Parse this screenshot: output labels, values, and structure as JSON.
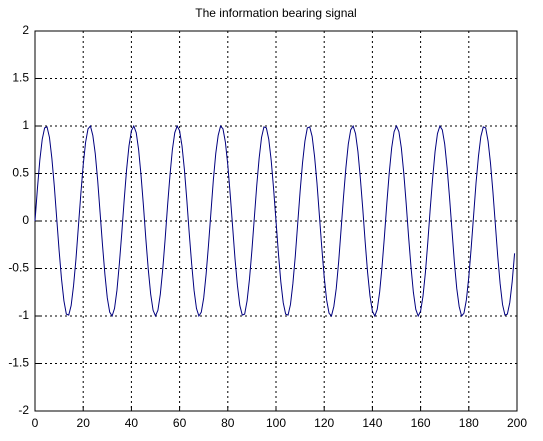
{
  "chart_data": {
    "type": "line",
    "title": "The information bearing signal",
    "color": "#00007f",
    "grid": true,
    "xlim": [
      0,
      200
    ],
    "xticks": [
      0,
      20,
      40,
      60,
      80,
      100,
      120,
      140,
      160,
      180,
      200
    ],
    "ylim": [
      -2,
      2
    ],
    "yticks": [
      -2,
      -1.5,
      -1,
      -0.5,
      0,
      0.5,
      1,
      1.5,
      2
    ],
    "x": [
      0,
      1,
      2,
      3,
      4,
      5,
      6,
      7,
      8,
      9,
      10,
      11,
      12,
      13,
      14,
      15,
      16,
      17,
      18,
      19,
      20,
      21,
      22,
      23,
      24,
      25,
      26,
      27,
      28,
      29,
      30,
      31,
      32,
      33,
      34,
      35,
      36,
      37,
      38,
      39,
      40,
      41,
      42,
      43,
      44,
      45,
      46,
      47,
      48,
      49,
      50,
      51,
      52,
      53,
      54,
      55,
      56,
      57,
      58,
      59,
      60,
      61,
      62,
      63,
      64,
      65,
      66,
      67,
      68,
      69,
      70,
      71,
      72,
      73,
      74,
      75,
      76,
      77,
      78,
      79,
      80,
      81,
      82,
      83,
      84,
      85,
      86,
      87,
      88,
      89,
      90,
      91,
      92,
      93,
      94,
      95,
      96,
      97,
      98,
      99,
      100,
      101,
      102,
      103,
      104,
      105,
      106,
      107,
      108,
      109,
      110,
      111,
      112,
      113,
      114,
      115,
      116,
      117,
      118,
      119,
      120,
      121,
      122,
      123,
      124,
      125,
      126,
      127,
      128,
      129,
      130,
      131,
      132,
      133,
      134,
      135,
      136,
      137,
      138,
      139,
      140,
      141,
      142,
      143,
      144,
      145,
      146,
      147,
      148,
      149,
      150,
      151,
      152,
      153,
      154,
      155,
      156,
      157,
      158,
      159,
      160,
      161,
      162,
      163,
      164,
      165,
      166,
      167,
      168,
      169,
      170,
      171,
      172,
      173,
      174,
      175,
      176,
      177,
      178,
      179,
      180,
      181,
      182,
      183,
      184,
      185,
      186,
      187,
      188,
      189,
      190,
      191,
      192,
      193,
      194,
      195,
      196,
      197,
      198,
      199
    ],
    "values": [
      0,
      0.34,
      0.64,
      0.86,
      0.98,
      0.99,
      0.88,
      0.66,
      0.37,
      0.03,
      -0.31,
      -0.61,
      -0.84,
      -0.98,
      -0.99,
      -0.89,
      -0.68,
      -0.4,
      -0.06,
      0.28,
      0.59,
      0.83,
      0.97,
      1,
      0.9,
      0.71,
      0.43,
      0.09,
      -0.25,
      -0.56,
      -0.81,
      -0.96,
      -1,
      -0.92,
      -0.73,
      -0.45,
      -0.13,
      0.22,
      0.54,
      0.79,
      0.95,
      1,
      0.93,
      0.75,
      0.48,
      0.16,
      -0.19,
      -0.51,
      -0.77,
      -0.94,
      -1,
      -0.94,
      -0.77,
      -0.51,
      -0.19,
      0.16,
      0.48,
      0.75,
      0.93,
      1,
      0.95,
      0.79,
      0.54,
      0.22,
      -0.13,
      -0.45,
      -0.73,
      -0.92,
      -1,
      -0.96,
      -0.81,
      -0.56,
      -0.25,
      0.09,
      0.43,
      0.71,
      0.9,
      1,
      0.97,
      0.83,
      0.59,
      0.28,
      -0.06,
      -0.4,
      -0.68,
      -0.89,
      -0.99,
      -0.98,
      -0.84,
      -0.61,
      -0.31,
      0.03,
      0.37,
      0.66,
      0.88,
      0.99,
      0.98,
      0.86,
      0.64,
      0.34,
      0,
      -0.34,
      -0.64,
      -0.86,
      -0.98,
      -0.99,
      -0.88,
      -0.66,
      -0.37,
      -0.03,
      0.31,
      0.61,
      0.84,
      0.98,
      0.99,
      0.89,
      0.68,
      0.4,
      0.06,
      -0.28,
      -0.59,
      -0.83,
      -0.97,
      -1,
      -0.9,
      -0.71,
      -0.43,
      -0.09,
      0.25,
      0.56,
      0.81,
      0.96,
      1,
      0.92,
      0.73,
      0.45,
      0.13,
      -0.22,
      -0.54,
      -0.79,
      -0.95,
      -1,
      -0.93,
      -0.75,
      -0.48,
      -0.16,
      0.19,
      0.51,
      0.77,
      0.94,
      1,
      0.94,
      0.77,
      0.51,
      0.19,
      -0.16,
      -0.48,
      -0.75,
      -0.93,
      -1,
      -0.95,
      -0.79,
      -0.54,
      -0.22,
      0.13,
      0.45,
      0.73,
      0.92,
      1,
      0.96,
      0.81,
      0.56,
      0.25,
      -0.09,
      -0.43,
      -0.71,
      -0.9,
      -1,
      -0.97,
      -0.83,
      -0.59,
      -0.28,
      0.06,
      0.4,
      0.68,
      0.89,
      0.99,
      0.98,
      0.84,
      0.61,
      0.31,
      -0.03,
      -0.37,
      -0.66,
      -0.88,
      -0.99,
      -0.98,
      -0.86,
      -0.64,
      -0.34
    ]
  }
}
